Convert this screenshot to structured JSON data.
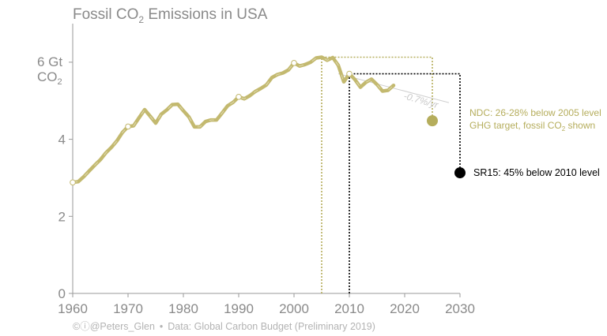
{
  "colors": {
    "series": "#c3b96f",
    "ndc": "#b5ad5c",
    "sr15": "#000000",
    "axis": "#9a9a9a",
    "text": "#8a8a8a",
    "footer": "#b3b3b3"
  },
  "chart_data": {
    "type": "line",
    "title_main": "Fossil CO",
    "title_sub": "2",
    "title_tail": " Emissions in USA",
    "y_unit_top": "6 Gt",
    "y_unit_main": "CO",
    "y_unit_sub": "2",
    "xlim": [
      1960,
      2030
    ],
    "ylim": [
      0,
      7
    ],
    "grid": false,
    "x_ticks": [
      1960,
      1970,
      1980,
      1990,
      2000,
      2010,
      2020,
      2030
    ],
    "y_ticks": [
      0,
      2,
      4
    ],
    "series": [
      {
        "x": [
          1960,
          1961,
          1962,
          1963,
          1964,
          1965,
          1966,
          1967,
          1968,
          1969,
          1970,
          1971,
          1972,
          1973,
          1974,
          1975,
          1976,
          1977,
          1978,
          1979,
          1980,
          1981,
          1982,
          1983,
          1984,
          1985,
          1986,
          1987,
          1988,
          1989,
          1990,
          1991,
          1992,
          1993,
          1994,
          1995,
          1996,
          1997,
          1998,
          1999,
          2000,
          2001,
          2002,
          2003,
          2004,
          2005,
          2006,
          2007,
          2008,
          2009,
          2010,
          2011,
          2012,
          2013,
          2014,
          2015,
          2016,
          2017,
          2018
        ],
        "y": [
          2.88,
          2.9,
          3.03,
          3.18,
          3.33,
          3.47,
          3.65,
          3.79,
          3.96,
          4.18,
          4.33,
          4.35,
          4.56,
          4.77,
          4.6,
          4.42,
          4.65,
          4.76,
          4.9,
          4.91,
          4.74,
          4.58,
          4.32,
          4.32,
          4.46,
          4.5,
          4.5,
          4.68,
          4.87,
          4.96,
          5.1,
          5.05,
          5.13,
          5.24,
          5.32,
          5.41,
          5.6,
          5.68,
          5.72,
          5.8,
          5.98,
          5.9,
          5.94,
          6.0,
          6.11,
          6.13,
          6.05,
          6.12,
          5.92,
          5.49,
          5.7,
          5.55,
          5.35,
          5.48,
          5.56,
          5.42,
          5.25,
          5.27,
          5.4
        ]
      }
    ],
    "highlight_points": [
      [
        1960,
        2.88
      ],
      [
        1970,
        4.33
      ],
      [
        1990,
        5.1
      ],
      [
        2000,
        5.98
      ],
      [
        2010,
        5.7
      ]
    ],
    "ndc": {
      "base_year": 2005,
      "base_value": 6.13,
      "target_year": 2025,
      "target_value": 4.48,
      "label_line1": "NDC: 26-28% below 2005 level",
      "label_line2_pre": "GHG target, fossil CO",
      "label_line2_sub": "2",
      "label_line2_post": " shown"
    },
    "sr15": {
      "base_year": 2010,
      "base_value": 5.7,
      "target_year": 2030,
      "target_value": 3.13,
      "label": "SR15: 45% below 2010 level"
    },
    "trend": {
      "label": "-0.7%/yr",
      "from": [
        2008,
        5.7
      ],
      "to": [
        2028,
        4.95
      ]
    }
  },
  "footer": {
    "icons": "©ⓘ",
    "handle": "@Peters_Glen",
    "separator": "•",
    "source": "Data: Global Carbon Budget (Preliminary 2019)"
  }
}
